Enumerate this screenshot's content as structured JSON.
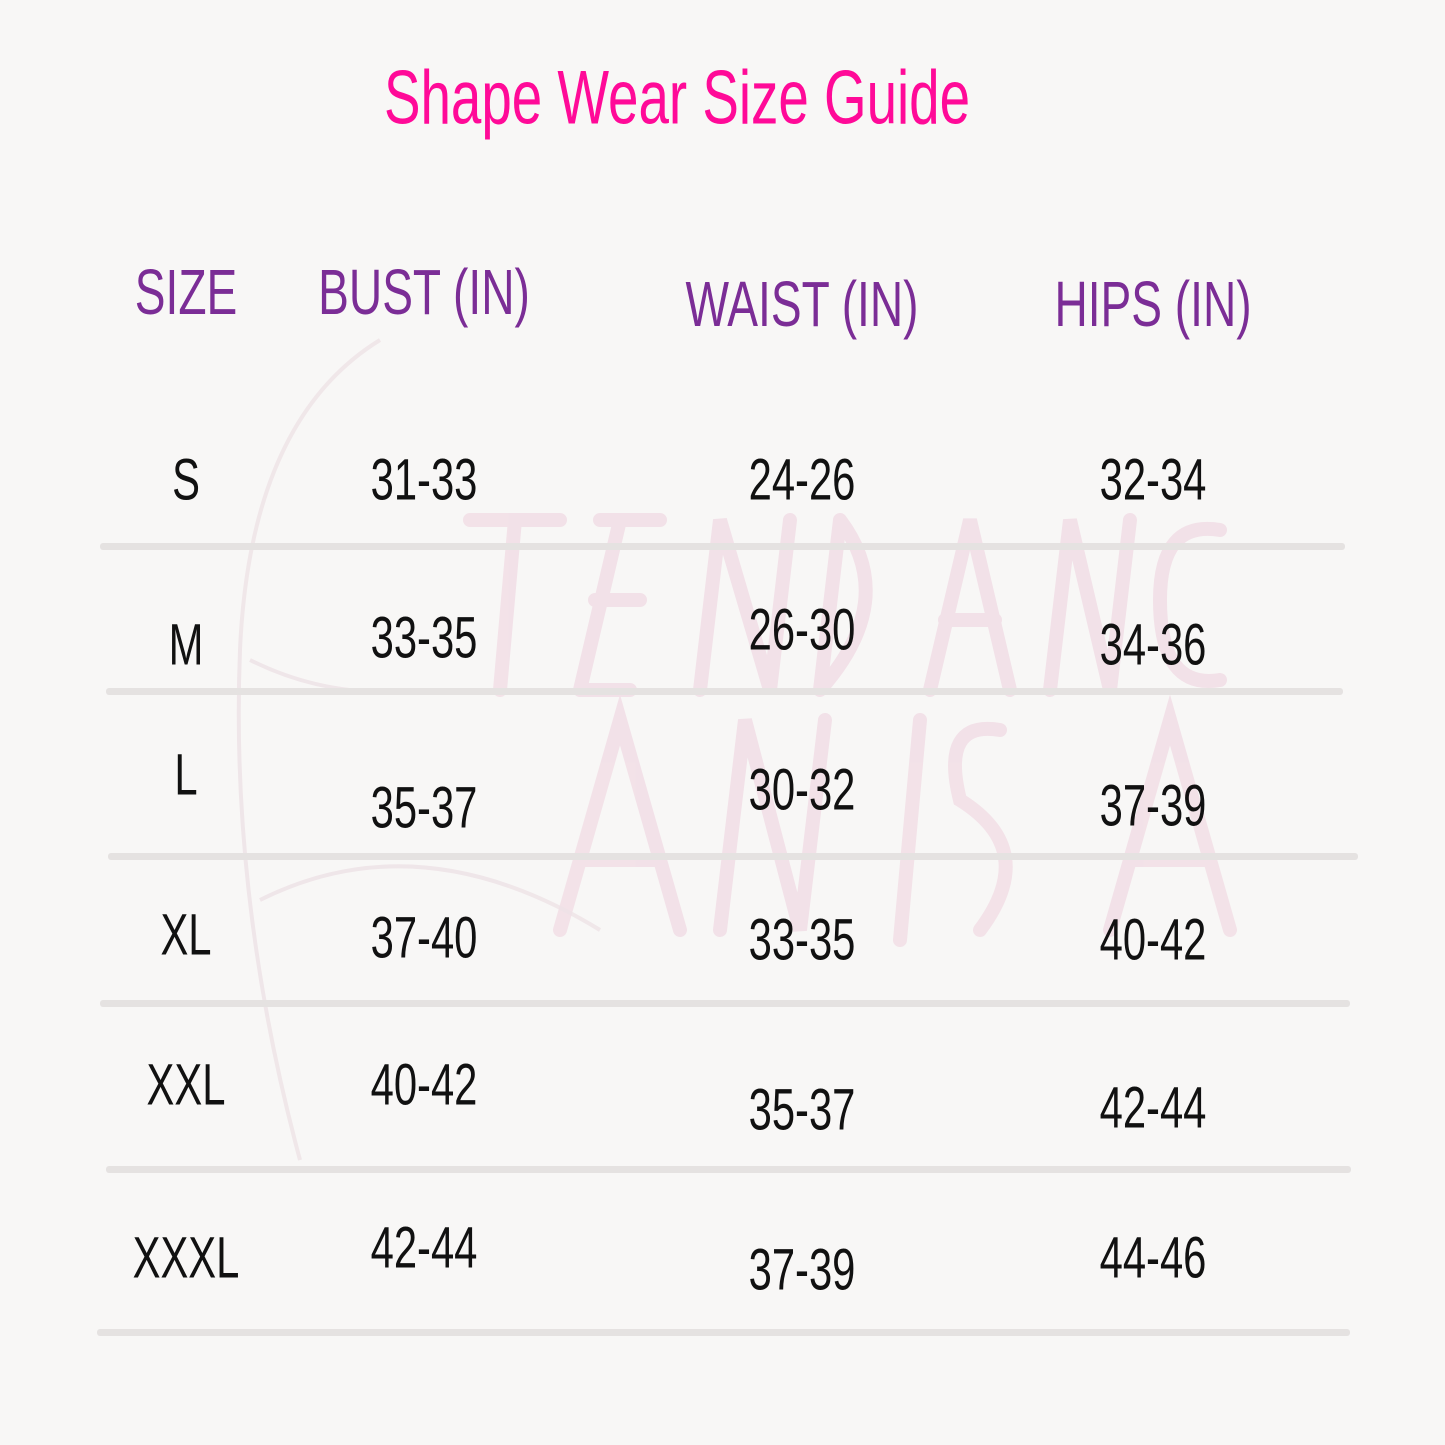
{
  "title": "Shape Wear Size Guide",
  "colors": {
    "title": "#ff0a98",
    "header": "#7b2d96",
    "text": "#111111",
    "background": "#f8f7f6",
    "divider": "#e5e2e1"
  },
  "watermark": {
    "line1": "TENDANCES",
    "line2": "AN-NISA"
  },
  "columns": [
    "SIZE",
    "BUST (IN)",
    "WAIST (IN)",
    "HIPS (IN)"
  ],
  "rows": [
    {
      "size": "S",
      "bust": "31-33",
      "waist": "24-26",
      "hips": "32-34"
    },
    {
      "size": "M",
      "bust": "33-35",
      "waist": "26-30",
      "hips": "34-36"
    },
    {
      "size": "L",
      "bust": "35-37",
      "waist": "30-32",
      "hips": "37-39"
    },
    {
      "size": "XL",
      "bust": "37-40",
      "waist": "33-35",
      "hips": "40-42"
    },
    {
      "size": "XXL",
      "bust": "40-42",
      "waist": "35-37",
      "hips": "42-44"
    },
    {
      "size": "XXXL",
      "bust": "42-44",
      "waist": "37-39",
      "hips": "44-46"
    }
  ]
}
